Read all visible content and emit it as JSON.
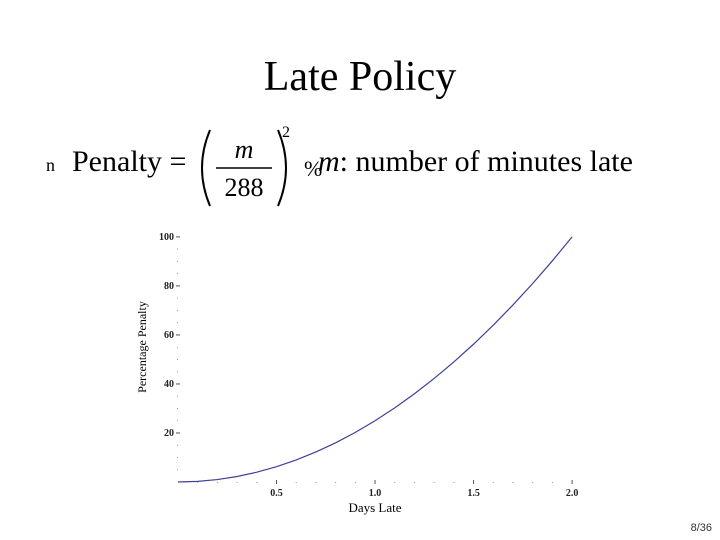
{
  "slide": {
    "title": "Late Policy",
    "bullet_symbol": "n",
    "penalty_label": "Penalty =",
    "formula": {
      "numerator": "m",
      "denominator": "288",
      "exponent": "2",
      "unit": "%"
    },
    "variable_name": "m",
    "variable_description": ": number of minutes late",
    "page_number": "8/36"
  },
  "colors": {
    "curve": "#3f3f9a",
    "axis": "#555555"
  },
  "chart_data": {
    "type": "line",
    "title": "",
    "xlabel": "Days Late",
    "ylabel": "Percentage Penalty",
    "xlim": [
      0,
      2.03
    ],
    "ylim": [
      0,
      102
    ],
    "x_ticks": [
      0.5,
      1.0,
      1.5,
      2.0
    ],
    "x_tick_labels": [
      "0.5",
      "1.0",
      "1.5",
      "2.0"
    ],
    "y_ticks": [
      20,
      40,
      60,
      80,
      100
    ],
    "y_tick_labels": [
      "20",
      "40",
      "60",
      "80",
      "100"
    ],
    "grid": false,
    "legend": "none",
    "series": [
      {
        "x": [
          0,
          0.1,
          0.2,
          0.3,
          0.4,
          0.5,
          0.6,
          0.7,
          0.8,
          0.9,
          1.0,
          1.1,
          1.2,
          1.3,
          1.4,
          1.5,
          1.6,
          1.7,
          1.8,
          1.9,
          2.0
        ],
        "values": [
          0,
          0.25,
          1,
          2.25,
          4,
          6.25,
          9,
          12.25,
          16,
          20.25,
          25,
          30.25,
          36,
          42.25,
          49,
          56.25,
          64,
          72.25,
          81,
          90.25,
          100
        ]
      }
    ]
  }
}
